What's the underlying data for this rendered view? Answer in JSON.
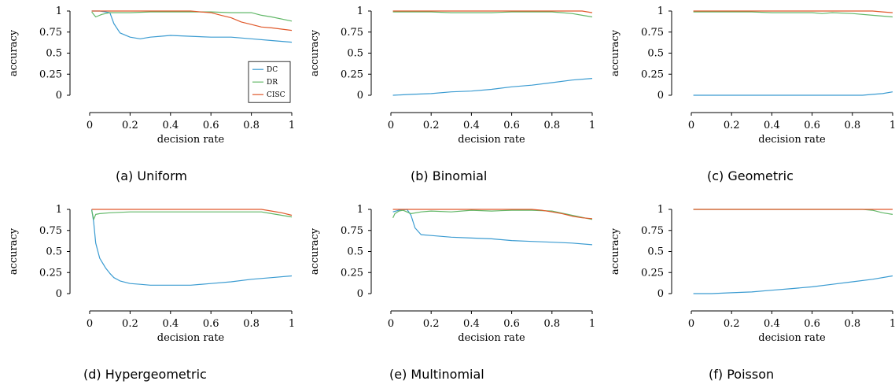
{
  "colors": {
    "DC": "#3a9bd1",
    "DR": "#62b868",
    "CISC": "#e0582a"
  },
  "chart_data": [
    {
      "type": "line",
      "caption": "(a) Uniform",
      "xlabel": "decision rate",
      "ylabel": "accuracy",
      "xlim": [
        0,
        1
      ],
      "ylim": [
        0,
        1
      ],
      "xticks": [
        "0",
        "0.2",
        "0.4",
        "0.6",
        "0.8",
        "1"
      ],
      "yticks": [
        "0",
        "0.25",
        "0.5",
        "0.75",
        "1"
      ],
      "legend": {
        "position": "lower-right",
        "entries": [
          "DC",
          "DR",
          "CISC"
        ]
      },
      "series": [
        {
          "name": "DC",
          "x": [
            0.01,
            0.05,
            0.1,
            0.12,
            0.15,
            0.2,
            0.25,
            0.3,
            0.35,
            0.4,
            0.5,
            0.6,
            0.7,
            0.8,
            0.9,
            1.0
          ],
          "y": [
            1.0,
            1.0,
            0.98,
            0.85,
            0.74,
            0.69,
            0.67,
            0.69,
            0.7,
            0.71,
            0.7,
            0.69,
            0.69,
            0.67,
            0.65,
            0.63
          ]
        },
        {
          "name": "DR",
          "x": [
            0.01,
            0.03,
            0.06,
            0.1,
            0.2,
            0.3,
            0.4,
            0.5,
            0.6,
            0.7,
            0.8,
            0.85,
            0.9,
            1.0
          ],
          "y": [
            0.99,
            0.93,
            0.96,
            0.98,
            0.98,
            0.99,
            0.99,
            0.99,
            0.99,
            0.98,
            0.98,
            0.95,
            0.93,
            0.88
          ]
        },
        {
          "name": "CISC",
          "x": [
            0.01,
            0.1,
            0.2,
            0.3,
            0.4,
            0.5,
            0.55,
            0.6,
            0.65,
            0.7,
            0.75,
            0.8,
            0.85,
            0.9,
            1.0
          ],
          "y": [
            1.0,
            1.0,
            1.0,
            1.0,
            1.0,
            1.0,
            0.99,
            0.98,
            0.95,
            0.92,
            0.87,
            0.84,
            0.81,
            0.8,
            0.77
          ]
        }
      ]
    },
    {
      "type": "line",
      "caption": "(b) Binomial",
      "xlabel": "decision rate",
      "ylabel": "accuracy",
      "xlim": [
        0,
        1
      ],
      "ylim": [
        0,
        1
      ],
      "xticks": [
        "0",
        "0.2",
        "0.4",
        "0.6",
        "0.8",
        "1"
      ],
      "yticks": [
        "0",
        "0.25",
        "0.5",
        "0.75",
        "1"
      ],
      "series": [
        {
          "name": "DC",
          "x": [
            0.01,
            0.1,
            0.2,
            0.3,
            0.4,
            0.5,
            0.6,
            0.7,
            0.8,
            0.9,
            1.0
          ],
          "y": [
            0.0,
            0.01,
            0.02,
            0.04,
            0.05,
            0.07,
            0.1,
            0.12,
            0.15,
            0.18,
            0.2
          ]
        },
        {
          "name": "DR",
          "x": [
            0.01,
            0.2,
            0.3,
            0.4,
            0.5,
            0.6,
            0.7,
            0.8,
            0.85,
            0.9,
            0.95,
            1.0
          ],
          "y": [
            0.99,
            0.99,
            0.98,
            0.98,
            0.98,
            0.99,
            0.99,
            0.99,
            0.98,
            0.97,
            0.95,
            0.93
          ]
        },
        {
          "name": "CISC",
          "x": [
            0.01,
            0.5,
            0.9,
            0.95,
            1.0
          ],
          "y": [
            1.0,
            1.0,
            1.0,
            1.0,
            0.98
          ]
        }
      ]
    },
    {
      "type": "line",
      "caption": "(c) Geometric",
      "xlabel": "decision rate",
      "ylabel": "accuracy",
      "xlim": [
        0,
        1
      ],
      "ylim": [
        0,
        1
      ],
      "xticks": [
        "0",
        "0.2",
        "0.4",
        "0.6",
        "0.8",
        "1"
      ],
      "yticks": [
        "0",
        "0.25",
        "0.5",
        "0.75",
        "1"
      ],
      "series": [
        {
          "name": "DC",
          "x": [
            0.01,
            0.5,
            0.85,
            0.9,
            0.95,
            1.0
          ],
          "y": [
            0.0,
            0.0,
            0.0,
            0.01,
            0.02,
            0.04
          ]
        },
        {
          "name": "DR",
          "x": [
            0.01,
            0.3,
            0.4,
            0.5,
            0.6,
            0.65,
            0.7,
            0.8,
            0.9,
            1.0
          ],
          "y": [
            0.99,
            0.99,
            0.98,
            0.98,
            0.98,
            0.97,
            0.98,
            0.97,
            0.95,
            0.93
          ]
        },
        {
          "name": "CISC",
          "x": [
            0.01,
            0.5,
            0.9,
            0.95,
            1.0
          ],
          "y": [
            1.0,
            1.0,
            1.0,
            0.99,
            0.98
          ]
        }
      ]
    },
    {
      "type": "line",
      "caption": "(d) Hypergeometric",
      "xlabel": "decision rate",
      "ylabel": "accuracy",
      "xlim": [
        0,
        1
      ],
      "ylim": [
        0,
        1
      ],
      "xticks": [
        "0",
        "0.2",
        "0.4",
        "0.6",
        "0.8",
        "1"
      ],
      "yticks": [
        "0",
        "0.25",
        "0.5",
        "0.75",
        "1"
      ],
      "series": [
        {
          "name": "DC",
          "x": [
            0.01,
            0.02,
            0.03,
            0.05,
            0.08,
            0.1,
            0.12,
            0.15,
            0.2,
            0.25,
            0.3,
            0.4,
            0.5,
            0.6,
            0.7,
            0.8,
            0.9,
            1.0
          ],
          "y": [
            1.0,
            0.85,
            0.6,
            0.42,
            0.3,
            0.24,
            0.19,
            0.15,
            0.12,
            0.11,
            0.1,
            0.1,
            0.1,
            0.12,
            0.14,
            0.17,
            0.19,
            0.21
          ]
        },
        {
          "name": "DR",
          "x": [
            0.01,
            0.02,
            0.03,
            0.05,
            0.1,
            0.2,
            0.3,
            0.5,
            0.7,
            0.85,
            0.9,
            0.95,
            1.0
          ],
          "y": [
            0.99,
            0.88,
            0.94,
            0.95,
            0.96,
            0.97,
            0.97,
            0.97,
            0.97,
            0.97,
            0.95,
            0.93,
            0.91
          ]
        },
        {
          "name": "CISC",
          "x": [
            0.01,
            0.3,
            0.6,
            0.85,
            0.9,
            0.95,
            1.0
          ],
          "y": [
            1.0,
            1.0,
            1.0,
            1.0,
            0.98,
            0.96,
            0.93
          ]
        }
      ]
    },
    {
      "type": "line",
      "caption": "(e) Multinomial",
      "xlabel": "decision rate",
      "ylabel": "accuracy",
      "xlim": [
        0,
        1
      ],
      "ylim": [
        0,
        1
      ],
      "xticks": [
        "0",
        "0.2",
        "0.4",
        "0.6",
        "0.8",
        "1"
      ],
      "yticks": [
        "0",
        "0.25",
        "0.5",
        "0.75",
        "1"
      ],
      "series": [
        {
          "name": "DC",
          "x": [
            0.01,
            0.04,
            0.08,
            0.1,
            0.12,
            0.15,
            0.2,
            0.3,
            0.4,
            0.5,
            0.6,
            0.7,
            0.8,
            0.9,
            1.0
          ],
          "y": [
            0.97,
            0.99,
            1.0,
            0.93,
            0.78,
            0.7,
            0.69,
            0.67,
            0.66,
            0.65,
            0.63,
            0.62,
            0.61,
            0.6,
            0.58
          ]
        },
        {
          "name": "DR",
          "x": [
            0.01,
            0.02,
            0.04,
            0.06,
            0.1,
            0.15,
            0.2,
            0.3,
            0.4,
            0.5,
            0.6,
            0.7,
            0.8,
            0.9,
            1.0
          ],
          "y": [
            0.9,
            0.95,
            0.98,
            0.99,
            0.95,
            0.97,
            0.98,
            0.97,
            0.99,
            0.98,
            0.99,
            0.99,
            0.98,
            0.93,
            0.88
          ]
        },
        {
          "name": "CISC",
          "x": [
            0.01,
            0.3,
            0.6,
            0.7,
            0.75,
            0.8,
            0.85,
            0.9,
            0.95,
            1.0
          ],
          "y": [
            1.0,
            1.0,
            1.0,
            1.0,
            0.99,
            0.97,
            0.95,
            0.92,
            0.9,
            0.89
          ]
        }
      ]
    },
    {
      "type": "line",
      "caption": "(f) Poisson",
      "xlabel": "decision rate",
      "ylabel": "accuracy",
      "xlim": [
        0,
        1
      ],
      "ylim": [
        0,
        1
      ],
      "xticks": [
        "0",
        "0.2",
        "0.4",
        "0.6",
        "0.8",
        "1"
      ],
      "yticks": [
        "0",
        "0.25",
        "0.5",
        "0.75",
        "1"
      ],
      "series": [
        {
          "name": "DC",
          "x": [
            0.01,
            0.1,
            0.2,
            0.3,
            0.4,
            0.5,
            0.6,
            0.7,
            0.8,
            0.9,
            1.0
          ],
          "y": [
            0.0,
            0.0,
            0.01,
            0.02,
            0.04,
            0.06,
            0.08,
            0.11,
            0.14,
            0.17,
            0.21
          ]
        },
        {
          "name": "DR",
          "x": [
            0.01,
            0.5,
            0.85,
            0.9,
            0.95,
            1.0
          ],
          "y": [
            1.0,
            1.0,
            1.0,
            0.99,
            0.96,
            0.94
          ]
        },
        {
          "name": "CISC",
          "x": [
            0.01,
            0.5,
            1.0
          ],
          "y": [
            1.0,
            1.0,
            1.0
          ]
        }
      ]
    }
  ]
}
